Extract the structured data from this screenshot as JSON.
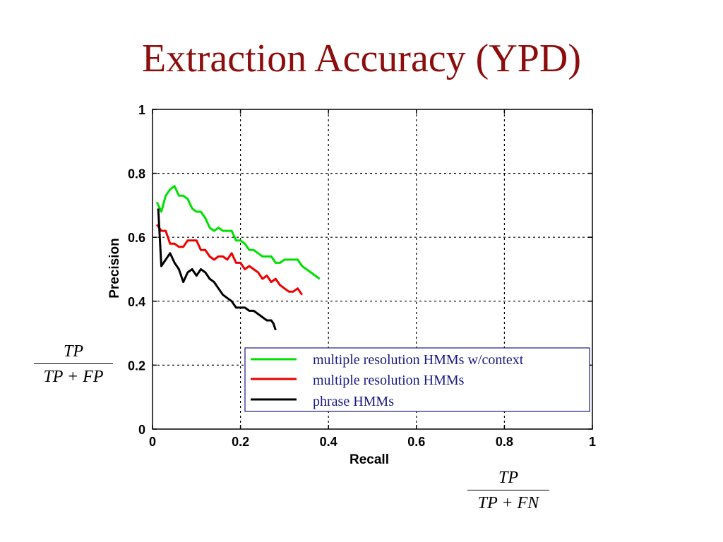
{
  "title": "Extraction Accuracy (YPD)",
  "chart_data": {
    "type": "line",
    "xlabel": "Recall",
    "ylabel": "Precision",
    "xlim": [
      0,
      1
    ],
    "ylim": [
      0,
      1
    ],
    "xticks": [
      "0",
      "0.2",
      "0.4",
      "0.6",
      "0.8",
      "1"
    ],
    "yticks": [
      "0",
      "0.2",
      "0.4",
      "0.6",
      "0.8",
      "1"
    ],
    "grid": true,
    "grid_style": "dotted",
    "legend_position": "lower-right",
    "series": [
      {
        "name": "multiple resolution HMMs w/context",
        "color": "#00e000",
        "x": [
          0.01,
          0.02,
          0.03,
          0.04,
          0.05,
          0.06,
          0.07,
          0.08,
          0.09,
          0.1,
          0.11,
          0.12,
          0.13,
          0.14,
          0.15,
          0.16,
          0.17,
          0.18,
          0.19,
          0.2,
          0.21,
          0.22,
          0.23,
          0.24,
          0.25,
          0.26,
          0.27,
          0.28,
          0.29,
          0.3,
          0.31,
          0.32,
          0.33,
          0.34,
          0.35,
          0.36,
          0.37,
          0.38
        ],
        "y": [
          0.71,
          0.68,
          0.73,
          0.75,
          0.76,
          0.73,
          0.73,
          0.72,
          0.69,
          0.68,
          0.68,
          0.66,
          0.63,
          0.62,
          0.63,
          0.62,
          0.62,
          0.62,
          0.59,
          0.59,
          0.58,
          0.56,
          0.56,
          0.55,
          0.54,
          0.54,
          0.54,
          0.52,
          0.52,
          0.53,
          0.53,
          0.53,
          0.53,
          0.51,
          0.5,
          0.49,
          0.48,
          0.47
        ]
      },
      {
        "name": "multiple resolution HMMs",
        "color": "#ee0000",
        "x": [
          0.01,
          0.02,
          0.03,
          0.04,
          0.05,
          0.06,
          0.07,
          0.08,
          0.09,
          0.1,
          0.11,
          0.12,
          0.13,
          0.14,
          0.15,
          0.16,
          0.17,
          0.18,
          0.19,
          0.2,
          0.21,
          0.22,
          0.23,
          0.24,
          0.25,
          0.26,
          0.27,
          0.28,
          0.29,
          0.3,
          0.31,
          0.32,
          0.33,
          0.34
        ],
        "y": [
          0.64,
          0.62,
          0.62,
          0.58,
          0.58,
          0.57,
          0.57,
          0.59,
          0.59,
          0.59,
          0.56,
          0.56,
          0.54,
          0.53,
          0.54,
          0.54,
          0.53,
          0.55,
          0.52,
          0.52,
          0.5,
          0.51,
          0.5,
          0.49,
          0.47,
          0.48,
          0.46,
          0.47,
          0.45,
          0.44,
          0.43,
          0.43,
          0.44,
          0.42
        ]
      },
      {
        "name": "phrase HMMs",
        "color": "#000000",
        "x": [
          0.013,
          0.02,
          0.03,
          0.04,
          0.05,
          0.06,
          0.07,
          0.08,
          0.09,
          0.1,
          0.11,
          0.12,
          0.13,
          0.14,
          0.15,
          0.16,
          0.17,
          0.18,
          0.19,
          0.2,
          0.21,
          0.22,
          0.23,
          0.24,
          0.25,
          0.26,
          0.27,
          0.275,
          0.28
        ],
        "y": [
          0.69,
          0.51,
          0.53,
          0.55,
          0.52,
          0.5,
          0.46,
          0.49,
          0.5,
          0.48,
          0.5,
          0.49,
          0.47,
          0.46,
          0.44,
          0.42,
          0.41,
          0.4,
          0.38,
          0.38,
          0.38,
          0.37,
          0.37,
          0.36,
          0.35,
          0.34,
          0.34,
          0.33,
          0.31
        ]
      }
    ]
  },
  "formulas": {
    "precision": {
      "numerator": "TP",
      "denominator": "TP + FP"
    },
    "recall": {
      "numerator": "TP",
      "denominator": "TP + FN"
    }
  }
}
